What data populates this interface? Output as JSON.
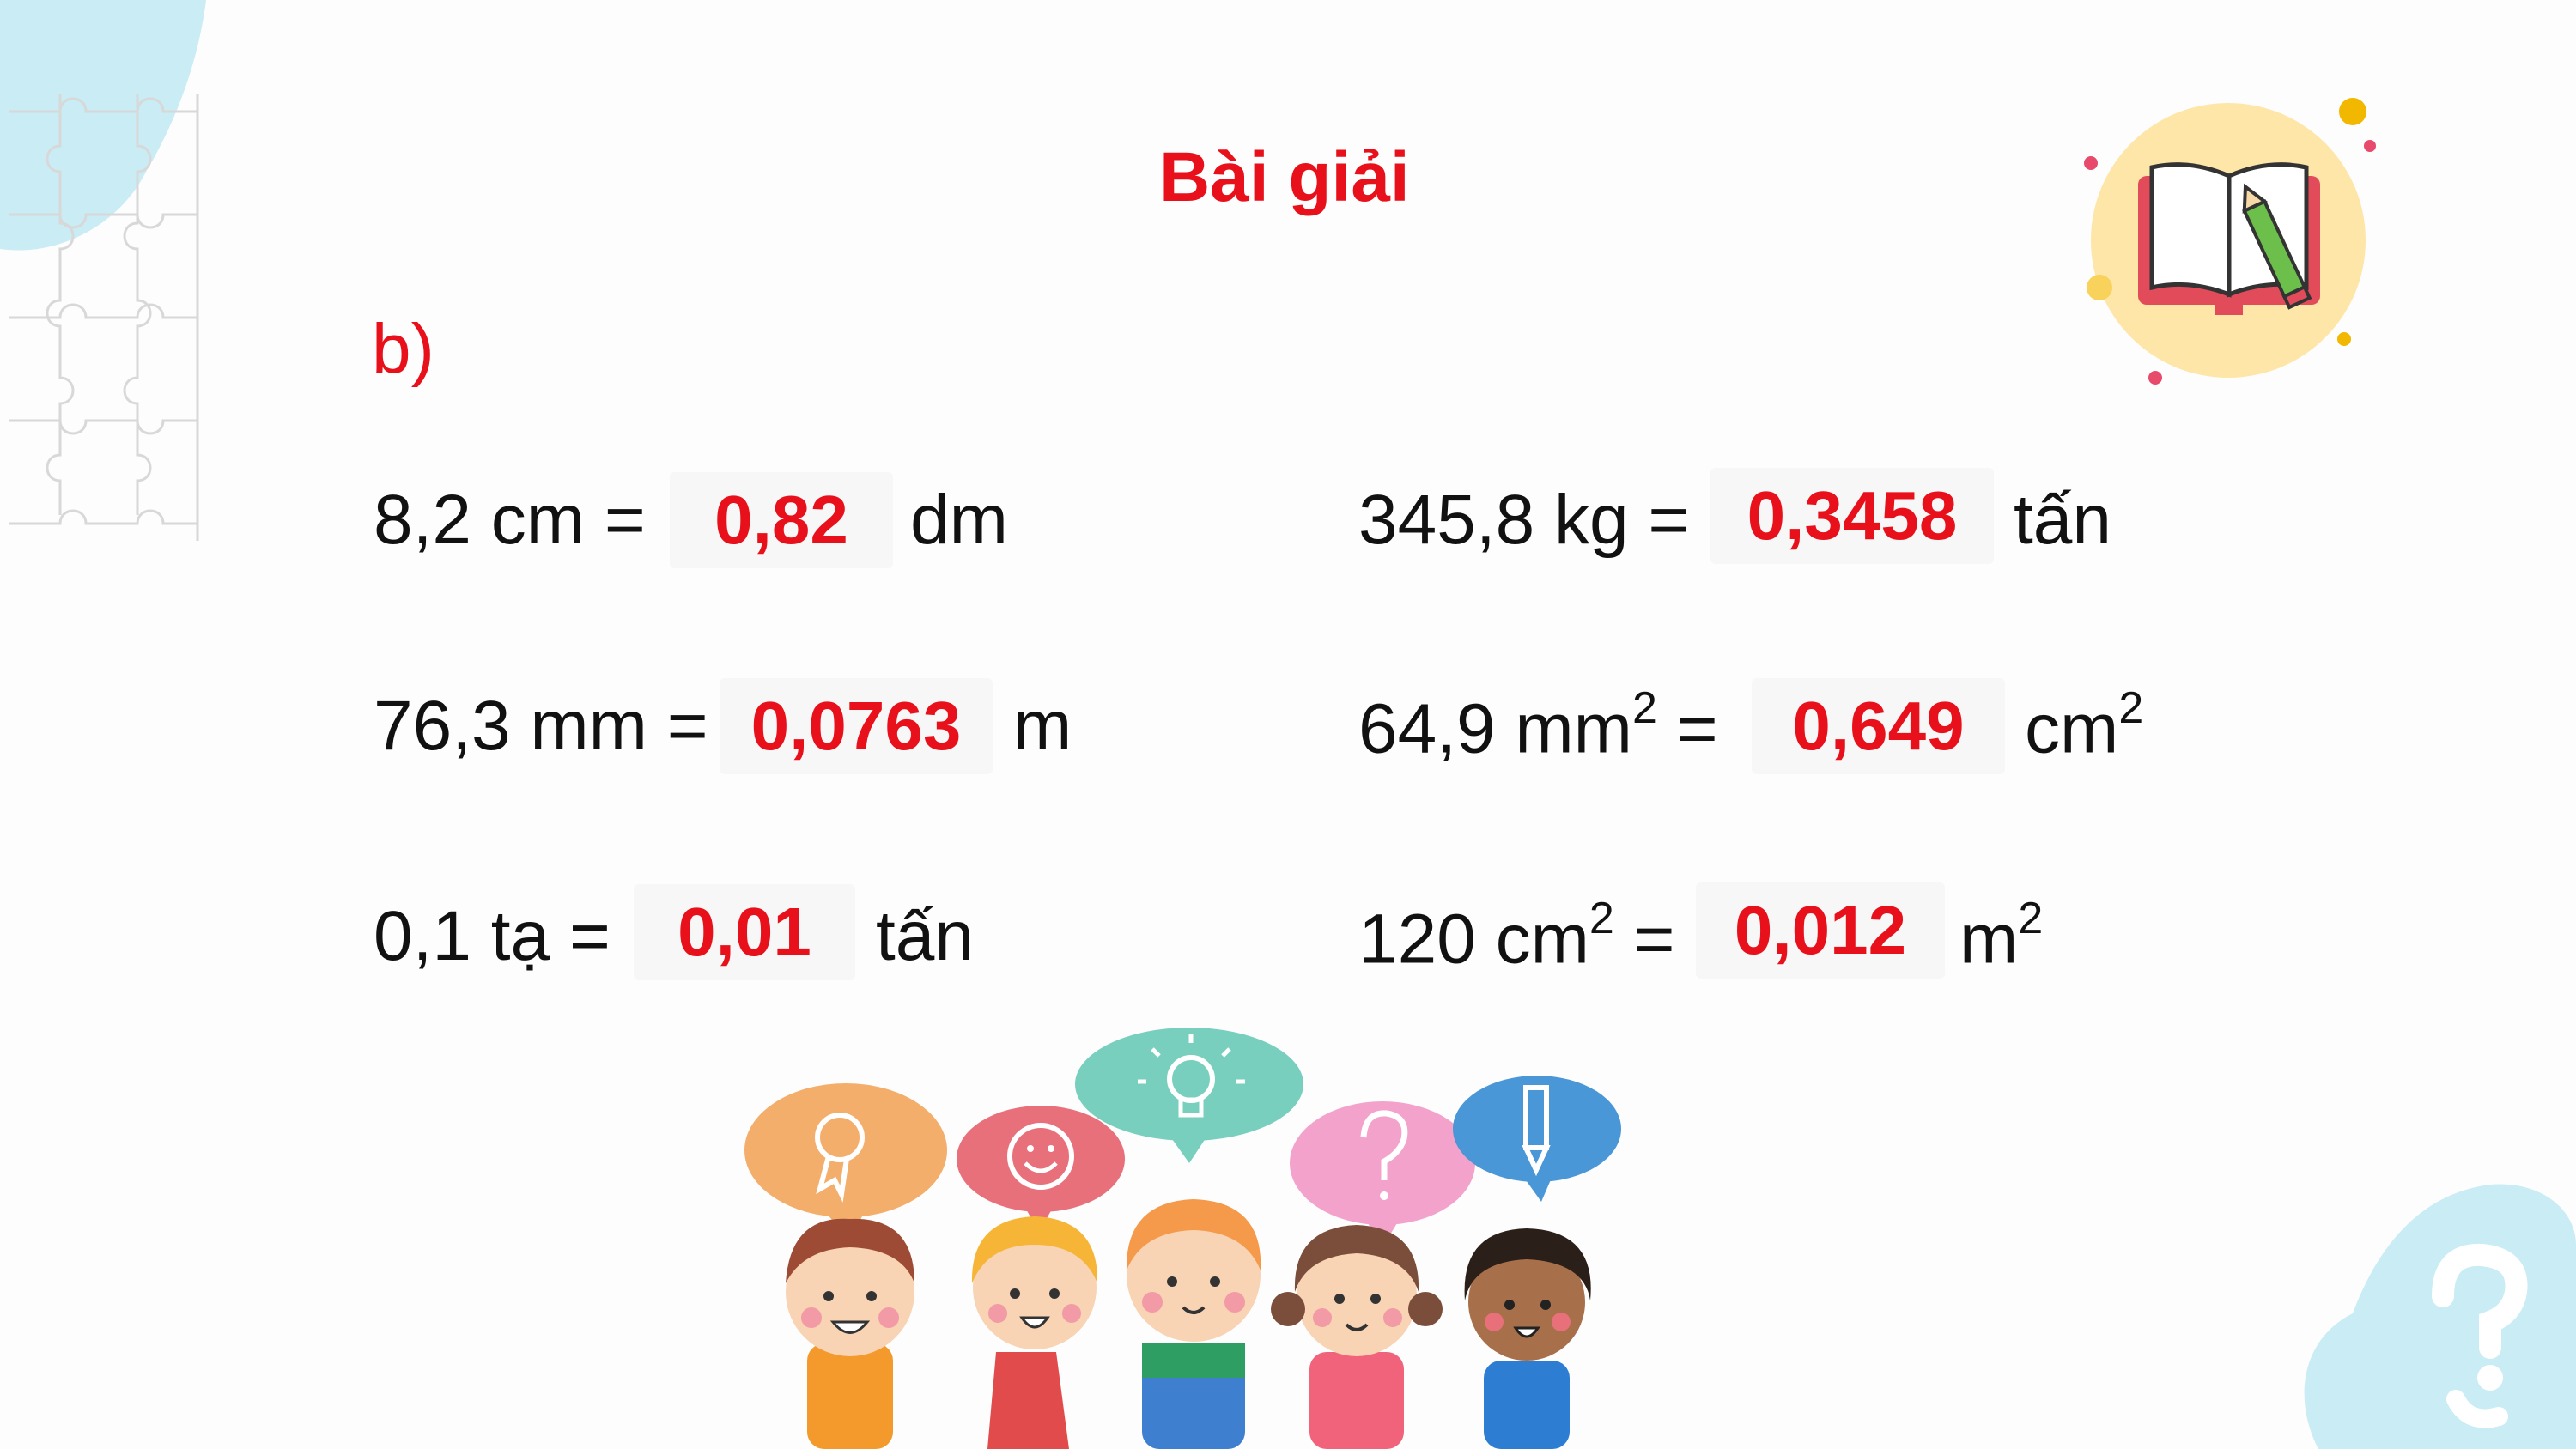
{
  "slide": {
    "title": "Bài giải",
    "part": "b)"
  },
  "rows": [
    {
      "left": "8,2 cm =",
      "answer": "0,82",
      "unit": "dm"
    },
    {
      "left": "345,8 kg =",
      "answer": "0,3458",
      "unit": "tấn"
    },
    {
      "left": "76,3 mm =",
      "answer": "0,0763",
      "unit": "m"
    },
    {
      "left_base": "64,9 mm",
      "left_sup": "2",
      "left_tail": " =",
      "answer": "0,649",
      "unit_base": "cm",
      "unit_sup": "2"
    },
    {
      "left": "0,1 tạ =",
      "answer": "0,01",
      "unit": "tấn"
    },
    {
      "left_base": "120 cm",
      "left_sup": "2",
      "left_tail": " =",
      "answer": "0,012",
      "unit_base": "m",
      "unit_sup": "2"
    }
  ],
  "decor": {
    "icons": [
      "puzzle-pattern",
      "book-pencil-icon",
      "question-mark-icon",
      "children-illustration",
      "award-icon",
      "smiley-icon",
      "lightbulb-icon",
      "question-icon",
      "pencil-icon"
    ],
    "colors": {
      "accent_red": "#e8101a",
      "light_blue": "#c9ecf5",
      "book_circle": "#fde6a8"
    }
  }
}
